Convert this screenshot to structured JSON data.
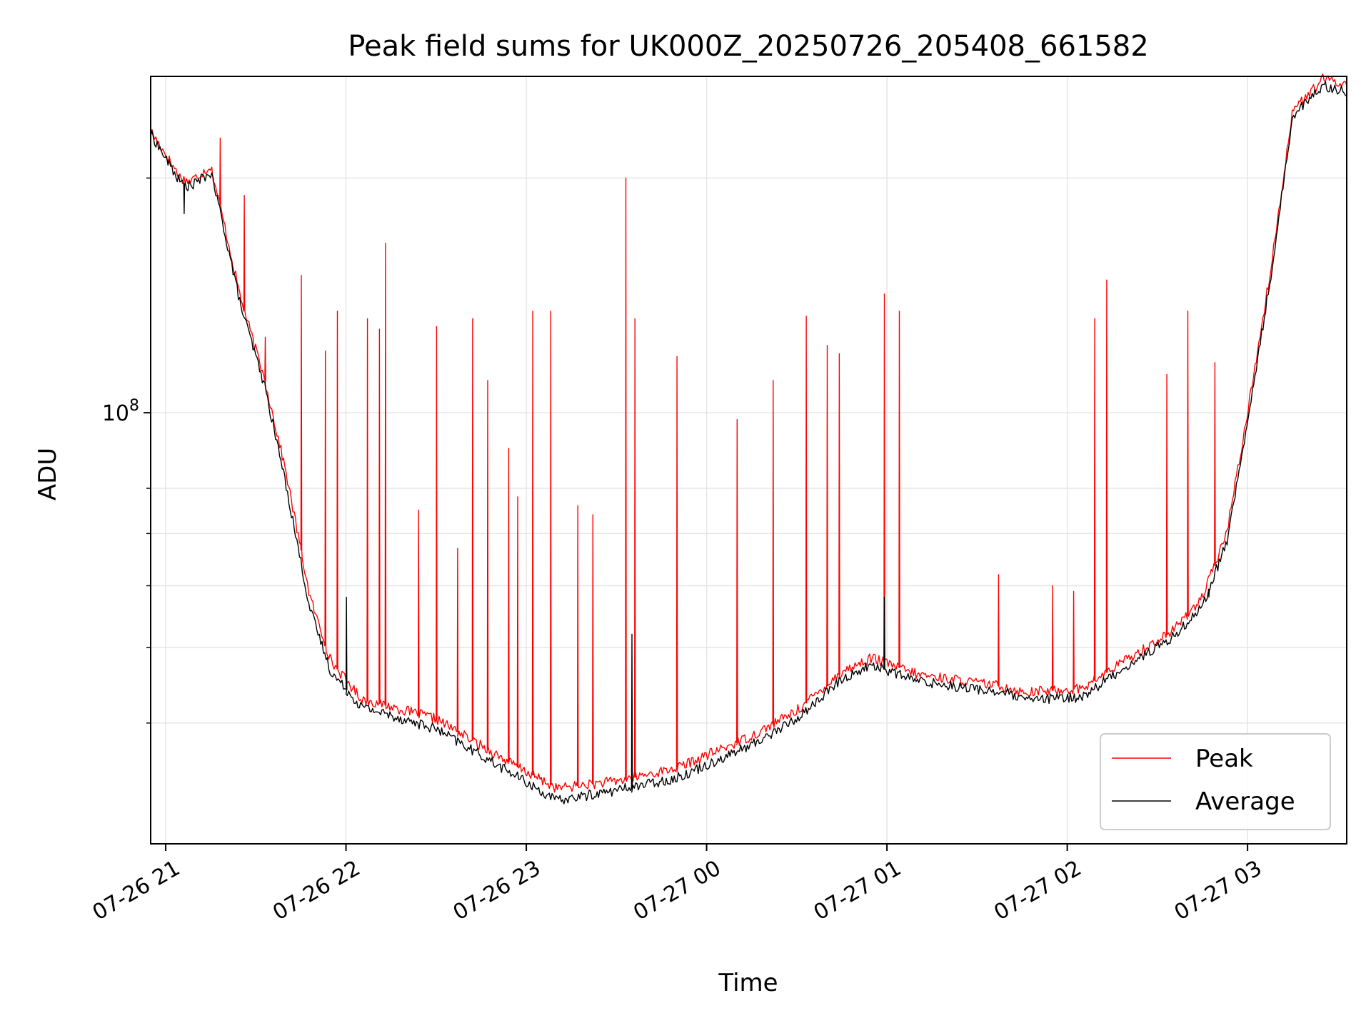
{
  "chart_data": {
    "type": "line",
    "title": "Peak field sums for UK000Z_20250726_205408_661582",
    "xlabel": "Time",
    "ylabel": "ADU",
    "yscale": "log",
    "ylim": [
      28000000,
      270000000
    ],
    "xlim": [
      "2025-07-26 20:55",
      "2025-07-27 03:33"
    ],
    "grid": true,
    "legend_position": "lower-right",
    "x_ticks": [
      {
        "t": "2025-07-26 21:00",
        "label": "07-26 21"
      },
      {
        "t": "2025-07-26 22:00",
        "label": "07-26 22"
      },
      {
        "t": "2025-07-26 23:00",
        "label": "07-26 23"
      },
      {
        "t": "2025-07-27 00:00",
        "label": "07-27 00"
      },
      {
        "t": "2025-07-27 01:00",
        "label": "07-27 01"
      },
      {
        "t": "2025-07-27 02:00",
        "label": "07-27 02"
      },
      {
        "t": "2025-07-27 03:00",
        "label": "07-27 03"
      }
    ],
    "y_major_ticks": [
      {
        "value": 100000000,
        "base": "10",
        "exp": "8"
      }
    ],
    "y_minor_ticks": [
      40000000,
      50000000,
      60000000,
      70000000,
      80000000,
      200000000
    ],
    "series": [
      {
        "name": "Peak",
        "color": "#ff0000",
        "baseline": [
          {
            "t": "2025-07-26 20:55",
            "v": 230000000
          },
          {
            "t": "2025-07-26 21:05",
            "v": 200000000
          },
          {
            "t": "2025-07-26 21:08",
            "v": 198000000
          },
          {
            "t": "2025-07-26 21:15",
            "v": 207000000
          },
          {
            "t": "2025-07-26 21:18",
            "v": 185000000
          },
          {
            "t": "2025-07-26 21:25",
            "v": 140000000
          },
          {
            "t": "2025-07-26 21:33",
            "v": 110000000
          },
          {
            "t": "2025-07-26 21:40",
            "v": 84000000
          },
          {
            "t": "2025-07-26 21:48",
            "v": 58000000
          },
          {
            "t": "2025-07-26 21:55",
            "v": 48000000
          },
          {
            "t": "2025-07-26 22:05",
            "v": 43000000
          },
          {
            "t": "2025-07-26 22:30",
            "v": 40500000
          },
          {
            "t": "2025-07-26 22:55",
            "v": 35500000
          },
          {
            "t": "2025-07-26 23:10",
            "v": 33000000
          },
          {
            "t": "2025-07-26 23:30",
            "v": 33700000
          },
          {
            "t": "2025-07-26 23:50",
            "v": 35000000
          },
          {
            "t": "2025-07-27 00:15",
            "v": 38500000
          },
          {
            "t": "2025-07-27 00:30",
            "v": 41500000
          },
          {
            "t": "2025-07-27 00:45",
            "v": 46500000
          },
          {
            "t": "2025-07-27 00:55",
            "v": 48500000
          },
          {
            "t": "2025-07-27 01:10",
            "v": 46200000
          },
          {
            "t": "2025-07-27 01:40",
            "v": 44500000
          },
          {
            "t": "2025-07-27 01:45",
            "v": 43800000
          },
          {
            "t": "2025-07-27 02:05",
            "v": 44300000
          },
          {
            "t": "2025-07-27 02:15",
            "v": 47000000
          },
          {
            "t": "2025-07-27 02:35",
            "v": 52500000
          },
          {
            "t": "2025-07-27 02:45",
            "v": 58000000
          },
          {
            "t": "2025-07-27 02:53",
            "v": 70000000
          },
          {
            "t": "2025-07-27 03:00",
            "v": 100000000
          },
          {
            "t": "2025-07-27 03:08",
            "v": 155000000
          },
          {
            "t": "2025-07-27 03:15",
            "v": 245000000
          },
          {
            "t": "2025-07-27 03:20",
            "v": 255000000
          },
          {
            "t": "2025-07-27 03:25",
            "v": 268000000
          },
          {
            "t": "2025-07-27 03:33",
            "v": 264000000
          }
        ],
        "spikes": [
          {
            "t": "2025-07-26 21:18",
            "v": 225000000
          },
          {
            "t": "2025-07-26 21:26",
            "v": 190000000
          },
          {
            "t": "2025-07-26 21:33",
            "v": 125000000
          },
          {
            "t": "2025-07-26 21:45",
            "v": 150000000
          },
          {
            "t": "2025-07-26 21:53",
            "v": 120000000
          },
          {
            "t": "2025-07-26 21:57",
            "v": 135000000
          },
          {
            "t": "2025-07-26 22:07",
            "v": 132000000
          },
          {
            "t": "2025-07-26 22:11",
            "v": 128000000
          },
          {
            "t": "2025-07-26 22:13",
            "v": 165000000
          },
          {
            "t": "2025-07-26 22:24",
            "v": 75000000
          },
          {
            "t": "2025-07-26 22:30",
            "v": 129000000
          },
          {
            "t": "2025-07-26 22:37",
            "v": 67000000
          },
          {
            "t": "2025-07-26 22:42",
            "v": 132000000
          },
          {
            "t": "2025-07-26 22:47",
            "v": 110000000
          },
          {
            "t": "2025-07-26 22:54",
            "v": 90000000
          },
          {
            "t": "2025-07-26 22:57",
            "v": 78000000
          },
          {
            "t": "2025-07-26 23:02",
            "v": 135000000
          },
          {
            "t": "2025-07-26 23:08",
            "v": 135000000
          },
          {
            "t": "2025-07-26 23:17",
            "v": 76000000
          },
          {
            "t": "2025-07-26 23:22",
            "v": 74000000
          },
          {
            "t": "2025-07-26 23:33",
            "v": 200000000
          },
          {
            "t": "2025-07-26 23:36",
            "v": 132000000
          },
          {
            "t": "2025-07-26 23:50",
            "v": 118000000
          },
          {
            "t": "2025-07-27 00:10",
            "v": 98000000
          },
          {
            "t": "2025-07-27 00:22",
            "v": 110000000
          },
          {
            "t": "2025-07-27 00:33",
            "v": 133000000
          },
          {
            "t": "2025-07-27 00:40",
            "v": 122000000
          },
          {
            "t": "2025-07-27 00:44",
            "v": 119000000
          },
          {
            "t": "2025-07-27 00:59",
            "v": 142000000
          },
          {
            "t": "2025-07-27 01:04",
            "v": 135000000
          },
          {
            "t": "2025-07-27 01:37",
            "v": 62000000
          },
          {
            "t": "2025-07-27 01:55",
            "v": 60000000
          },
          {
            "t": "2025-07-27 02:02",
            "v": 59000000
          },
          {
            "t": "2025-07-27 02:09",
            "v": 132000000
          },
          {
            "t": "2025-07-27 02:13",
            "v": 148000000
          },
          {
            "t": "2025-07-27 02:33",
            "v": 112000000
          },
          {
            "t": "2025-07-27 02:40",
            "v": 135000000
          },
          {
            "t": "2025-07-27 02:49",
            "v": 116000000
          }
        ]
      },
      {
        "name": "Average",
        "color": "#000000",
        "baseline": [
          {
            "t": "2025-07-26 20:55",
            "v": 228000000
          },
          {
            "t": "2025-07-26 21:05",
            "v": 197000000
          },
          {
            "t": "2025-07-26 21:08",
            "v": 195000000
          },
          {
            "t": "2025-07-26 21:15",
            "v": 203000000
          },
          {
            "t": "2025-07-26 21:18",
            "v": 182000000
          },
          {
            "t": "2025-07-26 21:25",
            "v": 137000000
          },
          {
            "t": "2025-07-26 21:33",
            "v": 108000000
          },
          {
            "t": "2025-07-26 21:40",
            "v": 81000000
          },
          {
            "t": "2025-07-26 21:48",
            "v": 56000000
          },
          {
            "t": "2025-07-26 21:55",
            "v": 46500000
          },
          {
            "t": "2025-07-26 22:05",
            "v": 42000000
          },
          {
            "t": "2025-07-26 22:30",
            "v": 39300000
          },
          {
            "t": "2025-07-26 22:55",
            "v": 34500000
          },
          {
            "t": "2025-07-26 23:10",
            "v": 31800000
          },
          {
            "t": "2025-07-26 23:30",
            "v": 32800000
          },
          {
            "t": "2025-07-26 23:50",
            "v": 34000000
          },
          {
            "t": "2025-07-27 00:15",
            "v": 37500000
          },
          {
            "t": "2025-07-27 00:30",
            "v": 40500000
          },
          {
            "t": "2025-07-27 00:45",
            "v": 45500000
          },
          {
            "t": "2025-07-27 00:55",
            "v": 47500000
          },
          {
            "t": "2025-07-27 01:10",
            "v": 45300000
          },
          {
            "t": "2025-07-27 01:40",
            "v": 43700000
          },
          {
            "t": "2025-07-27 01:45",
            "v": 42800000
          },
          {
            "t": "2025-07-27 02:05",
            "v": 43200000
          },
          {
            "t": "2025-07-27 02:15",
            "v": 46000000
          },
          {
            "t": "2025-07-27 02:35",
            "v": 51500000
          },
          {
            "t": "2025-07-27 02:45",
            "v": 56500000
          },
          {
            "t": "2025-07-27 02:53",
            "v": 68000000
          },
          {
            "t": "2025-07-27 03:00",
            "v": 97000000
          },
          {
            "t": "2025-07-27 03:08",
            "v": 152000000
          },
          {
            "t": "2025-07-27 03:15",
            "v": 241000000
          },
          {
            "t": "2025-07-27 03:20",
            "v": 251000000
          },
          {
            "t": "2025-07-27 03:25",
            "v": 263000000
          },
          {
            "t": "2025-07-27 03:33",
            "v": 258000000
          }
        ],
        "spikes": [
          {
            "t": "2025-07-26 21:06",
            "v": 180000000
          },
          {
            "t": "2025-07-26 22:00",
            "v": 58000000
          },
          {
            "t": "2025-07-26 23:35",
            "v": 52000000
          },
          {
            "t": "2025-07-27 00:59",
            "v": 58000000
          },
          {
            "t": "2025-07-27 02:47",
            "v": 58000000
          }
        ]
      }
    ]
  }
}
